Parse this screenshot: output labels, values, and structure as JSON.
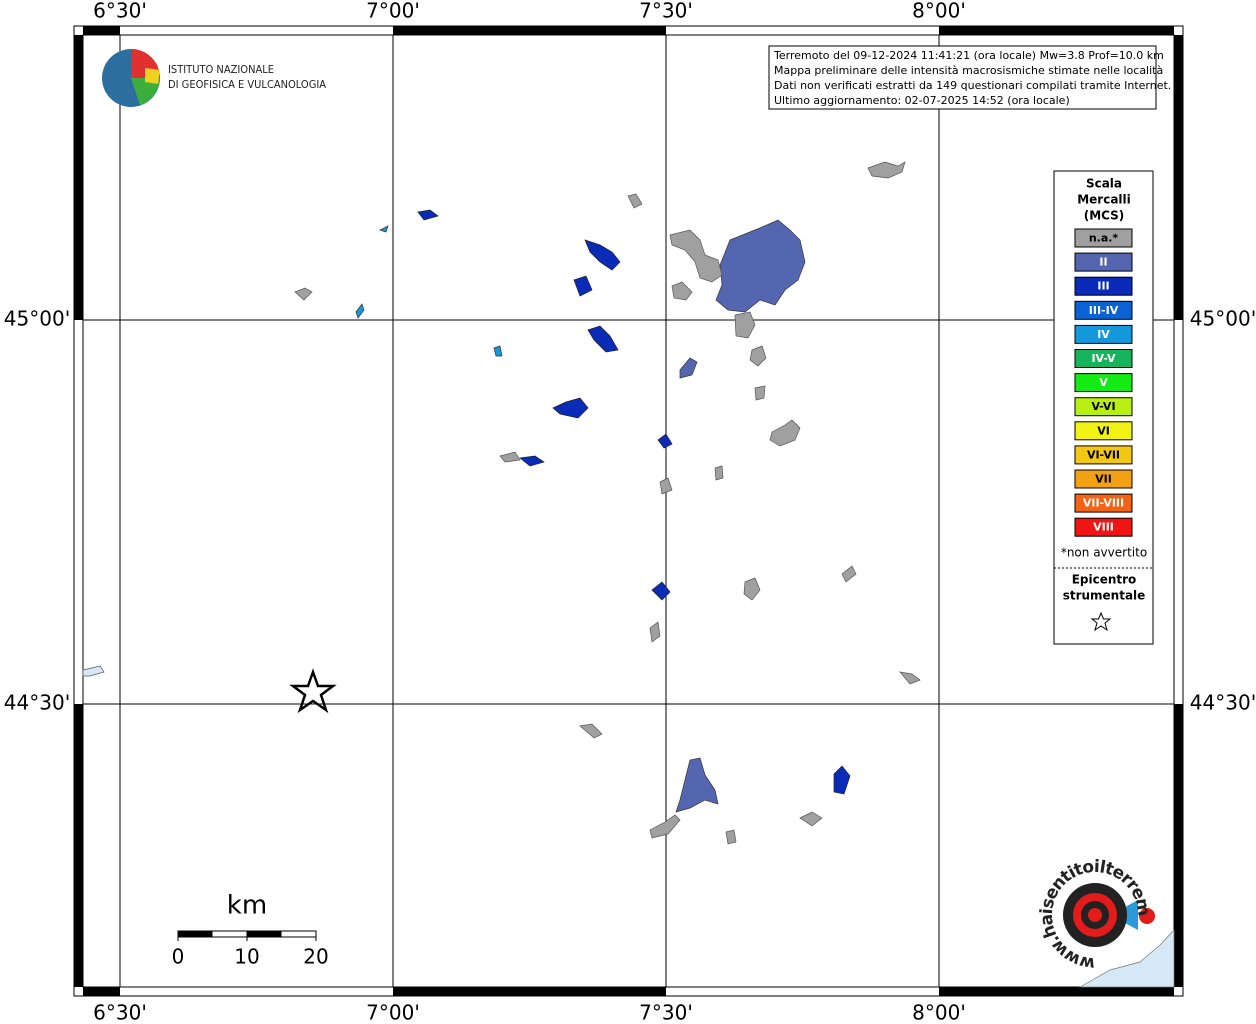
{
  "map": {
    "frame_labels": {
      "top": [
        "6°30'",
        "7°00'",
        "7°30'",
        "8°00'"
      ],
      "bottom": [
        "6°30'",
        "7°00'",
        "7°30'",
        "8°00'"
      ],
      "left": [
        "45°00'",
        "44°30'"
      ],
      "right": [
        "45°00'",
        "44°30'"
      ]
    },
    "logo": {
      "line1": "ISTITUTO NAZIONALE",
      "line2": "DI GEOFISICA E VULCANOLOGIA"
    },
    "info": [
      "Terremoto del 09-12-2024 11:41:21 (ora locale) Mw=3.8 Prof=10.0 km",
      "Mappa preliminare delle intensità macrosismiche stimate nelle località",
      "Dati non verificati estratti da 149 questionari compilati tramite Internet.",
      "Ultimo aggiornamento: 02-07-2025 14:52 (ora locale)"
    ],
    "legend": {
      "title": [
        "Scala",
        "Mercalli",
        "(MCS)"
      ],
      "items": [
        {
          "label": "n.a.*",
          "color": "#a0a0a0"
        },
        {
          "label": "II",
          "color": "#5566b0"
        },
        {
          "label": "III",
          "color": "#0a2ab8"
        },
        {
          "label": "III-IV",
          "color": "#0a62d4"
        },
        {
          "label": "IV",
          "color": "#1498dc"
        },
        {
          "label": "IV-V",
          "color": "#16b45c"
        },
        {
          "label": "V",
          "color": "#14ea14"
        },
        {
          "label": "V-VI",
          "color": "#b8f014"
        },
        {
          "label": "VI",
          "color": "#f2f214"
        },
        {
          "label": "VI-VII",
          "color": "#f2c814"
        },
        {
          "label": "VII",
          "color": "#f2a014"
        },
        {
          "label": "VII-VIII",
          "color": "#f26414"
        },
        {
          "label": "VIII",
          "color": "#f01414"
        }
      ],
      "note": "*non avvertito",
      "epicenter": [
        "Epicentro",
        "strumentale"
      ]
    },
    "scale_bar": {
      "unit": "km",
      "labels": [
        "0",
        "10",
        "20"
      ]
    },
    "site_logo": "www.haisentitoilterremoto.it"
  }
}
